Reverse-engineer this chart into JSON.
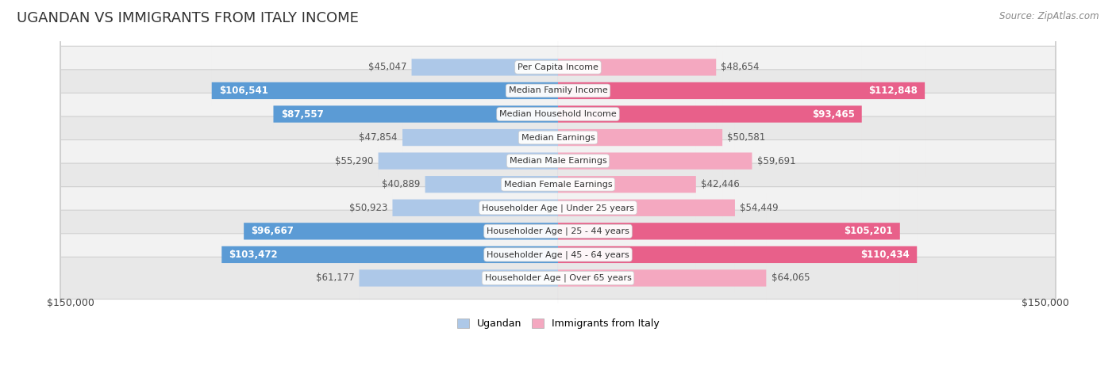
{
  "title": "UGANDAN VS IMMIGRANTS FROM ITALY INCOME",
  "source": "Source: ZipAtlas.com",
  "categories": [
    "Per Capita Income",
    "Median Family Income",
    "Median Household Income",
    "Median Earnings",
    "Median Male Earnings",
    "Median Female Earnings",
    "Householder Age | Under 25 years",
    "Householder Age | 25 - 44 years",
    "Householder Age | 45 - 64 years",
    "Householder Age | Over 65 years"
  ],
  "ugandan": [
    45047,
    106541,
    87557,
    47854,
    55290,
    40889,
    50923,
    96667,
    103472,
    61177
  ],
  "italy": [
    48654,
    112848,
    93465,
    50581,
    59691,
    42446,
    54449,
    105201,
    110434,
    64065
  ],
  "ugandan_labels": [
    "$45,047",
    "$106,541",
    "$87,557",
    "$47,854",
    "$55,290",
    "$40,889",
    "$50,923",
    "$96,667",
    "$103,472",
    "$61,177"
  ],
  "italy_labels": [
    "$48,654",
    "$112,848",
    "$93,465",
    "$50,581",
    "$59,691",
    "$42,446",
    "$54,449",
    "$105,201",
    "$110,434",
    "$64,065"
  ],
  "max_val": 150000,
  "ugandan_color_light": "#adc8e8",
  "ugandan_color_dark": "#5b9bd5",
  "italy_color_light": "#f4a8c0",
  "italy_color_dark": "#e8608a",
  "row_colors": [
    "#f2f2f2",
    "#e8e8e8"
  ],
  "row_border": "#d0d0d0",
  "title_color": "#333333",
  "source_color": "#888888",
  "label_inside_color": "#ffffff",
  "label_outside_color": "#555555",
  "legend_ugandan": "Ugandan",
  "legend_italy": "Immigrants from Italy",
  "inside_threshold": 70000,
  "label_fontsize": 8.5,
  "cat_fontsize": 8.0
}
